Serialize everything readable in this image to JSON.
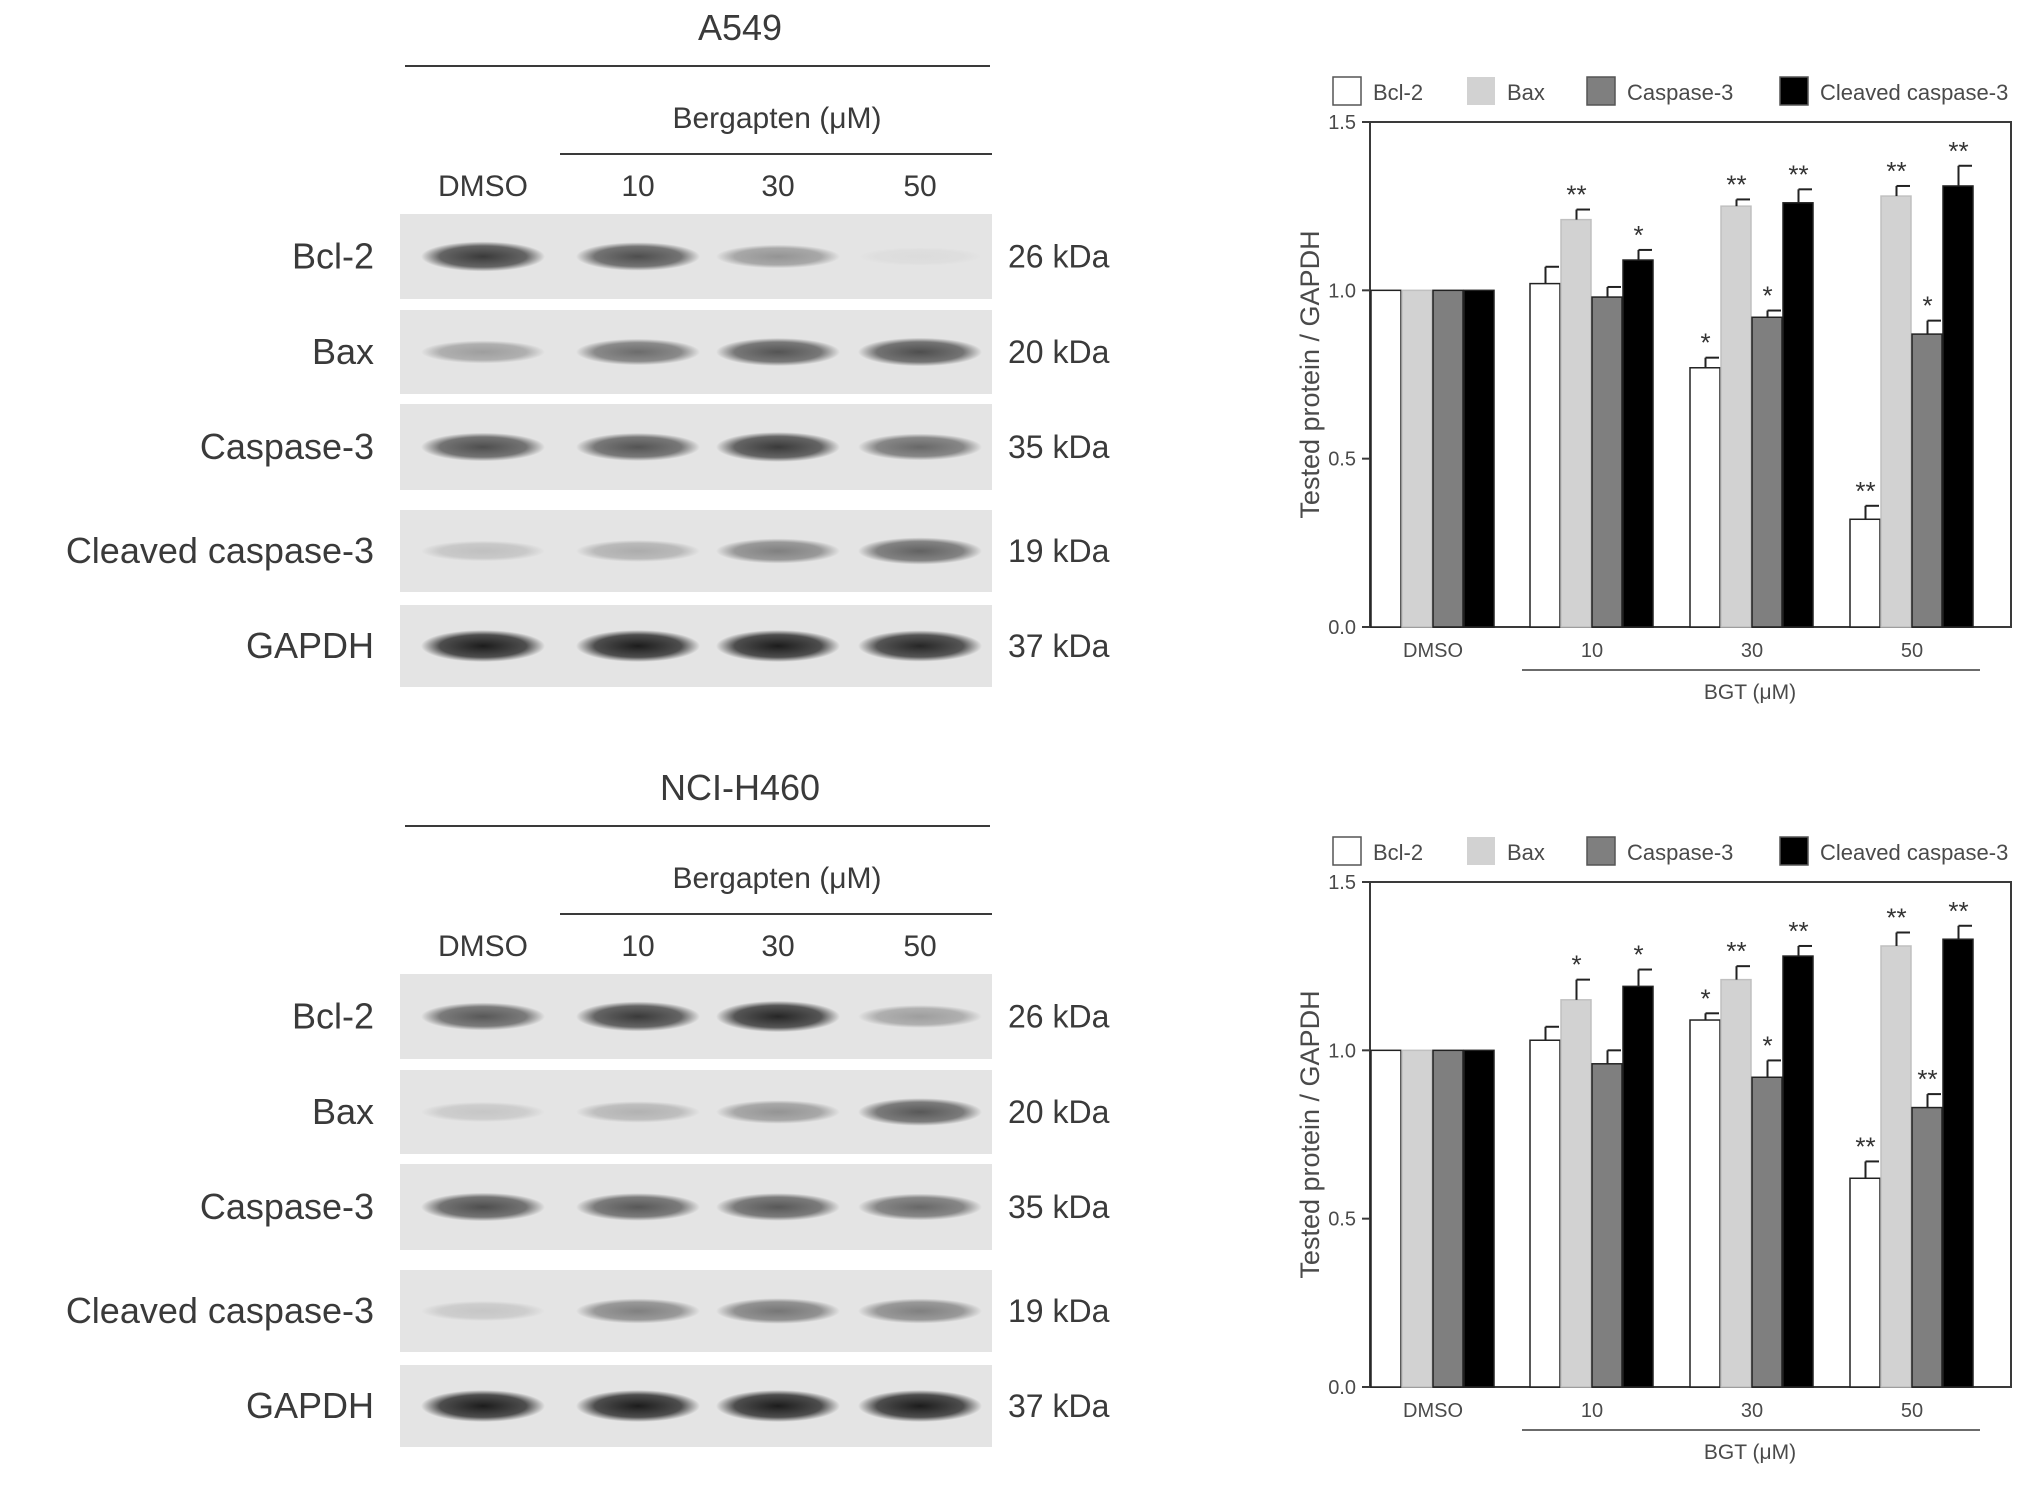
{
  "colors": {
    "bcl2": "#ffffff",
    "bax": "#d2d2d2",
    "caspase3": "#7f7f7f",
    "cleaved_caspase3": "#000000",
    "axis": "#3a3a3a",
    "blot_bg": "#e4e4e4",
    "band": "#1c1c1c"
  },
  "blots": [
    {
      "cell_line": "A549",
      "treatment_label": "Bergapten (μM)",
      "lanes": [
        "DMSO",
        "10",
        "30",
        "50"
      ],
      "proteins": [
        {
          "name": "Bcl-2",
          "kda": "26 kDa",
          "intensity": [
            0.85,
            0.75,
            0.4,
            0.04
          ]
        },
        {
          "name": "Bax",
          "kda": "20 kDa",
          "intensity": [
            0.35,
            0.6,
            0.72,
            0.75
          ]
        },
        {
          "name": "Caspase-3",
          "kda": "35 kDa",
          "intensity": [
            0.75,
            0.72,
            0.85,
            0.62
          ]
        },
        {
          "name": "Cleaved caspase-3",
          "kda": "19 kDa",
          "intensity": [
            0.18,
            0.28,
            0.5,
            0.65
          ]
        },
        {
          "name": "GAPDH",
          "kda": "37 kDa",
          "intensity": [
            1.0,
            1.0,
            1.0,
            0.95
          ]
        }
      ]
    },
    {
      "cell_line": "NCI-H460",
      "treatment_label": "Bergapten (μM)",
      "lanes": [
        "DMSO",
        "10",
        "30",
        "50"
      ],
      "proteins": [
        {
          "name": "Bcl-2",
          "kda": "26 kDa",
          "intensity": [
            0.7,
            0.85,
            0.95,
            0.35
          ]
        },
        {
          "name": "Bax",
          "kda": "20 kDa",
          "intensity": [
            0.15,
            0.25,
            0.4,
            0.7
          ]
        },
        {
          "name": "Caspase-3",
          "kda": "35 kDa",
          "intensity": [
            0.75,
            0.7,
            0.7,
            0.62
          ]
        },
        {
          "name": "Cleaved caspase-3",
          "kda": "19 kDa",
          "intensity": [
            0.15,
            0.5,
            0.55,
            0.5
          ]
        },
        {
          "name": "GAPDH",
          "kda": "37 kDa",
          "intensity": [
            1.0,
            1.0,
            1.0,
            1.0
          ]
        }
      ]
    }
  ],
  "chart_data": [
    {
      "type": "bar",
      "categories": [
        "DMSO",
        "10",
        "30",
        "50"
      ],
      "group_label": "BGT (μM)",
      "ylabel": "Tested protein / GAPDH",
      "ylim": [
        0,
        1.5
      ],
      "yticks": [
        "0.0",
        "0.5",
        "1.0",
        "1.5"
      ],
      "legend_position": "top",
      "series": [
        {
          "name": "Bcl-2",
          "values": [
            1.0,
            1.02,
            0.77,
            0.32
          ],
          "errors": [
            0,
            0.05,
            0.03,
            0.04
          ],
          "sig": [
            "",
            "",
            "*",
            "**"
          ]
        },
        {
          "name": "Bax",
          "values": [
            1.0,
            1.21,
            1.25,
            1.28
          ],
          "errors": [
            0,
            0.03,
            0.02,
            0.03
          ],
          "sig": [
            "",
            "**",
            "**",
            "**"
          ]
        },
        {
          "name": "Caspase-3",
          "values": [
            1.0,
            0.98,
            0.92,
            0.87
          ],
          "errors": [
            0,
            0.03,
            0.02,
            0.04
          ],
          "sig": [
            "",
            "",
            "*",
            "*"
          ]
        },
        {
          "name": "Cleaved caspase-3",
          "values": [
            1.0,
            1.09,
            1.26,
            1.31
          ],
          "errors": [
            0,
            0.03,
            0.04,
            0.06
          ],
          "sig": [
            "",
            "*",
            "**",
            "**"
          ]
        }
      ]
    },
    {
      "type": "bar",
      "categories": [
        "DMSO",
        "10",
        "30",
        "50"
      ],
      "group_label": "BGT (μM)",
      "ylabel": "Tested protein / GAPDH",
      "ylim": [
        0,
        1.5
      ],
      "yticks": [
        "0.0",
        "0.5",
        "1.0",
        "1.5"
      ],
      "legend_position": "top",
      "series": [
        {
          "name": "Bcl-2",
          "values": [
            1.0,
            1.03,
            1.09,
            0.62
          ],
          "errors": [
            0,
            0.04,
            0.02,
            0.05
          ],
          "sig": [
            "",
            "",
            "*",
            "**"
          ]
        },
        {
          "name": "Bax",
          "values": [
            1.0,
            1.15,
            1.21,
            1.31
          ],
          "errors": [
            0,
            0.06,
            0.04,
            0.04
          ],
          "sig": [
            "",
            "*",
            "**",
            "**"
          ]
        },
        {
          "name": "Caspase-3",
          "values": [
            1.0,
            0.96,
            0.92,
            0.83
          ],
          "errors": [
            0,
            0.04,
            0.05,
            0.04
          ],
          "sig": [
            "",
            "",
            "*",
            "**"
          ]
        },
        {
          "name": "Cleaved caspase-3",
          "values": [
            1.0,
            1.19,
            1.28,
            1.33
          ],
          "errors": [
            0,
            0.05,
            0.03,
            0.04
          ],
          "sig": [
            "",
            "*",
            "**",
            "**"
          ]
        }
      ]
    }
  ]
}
